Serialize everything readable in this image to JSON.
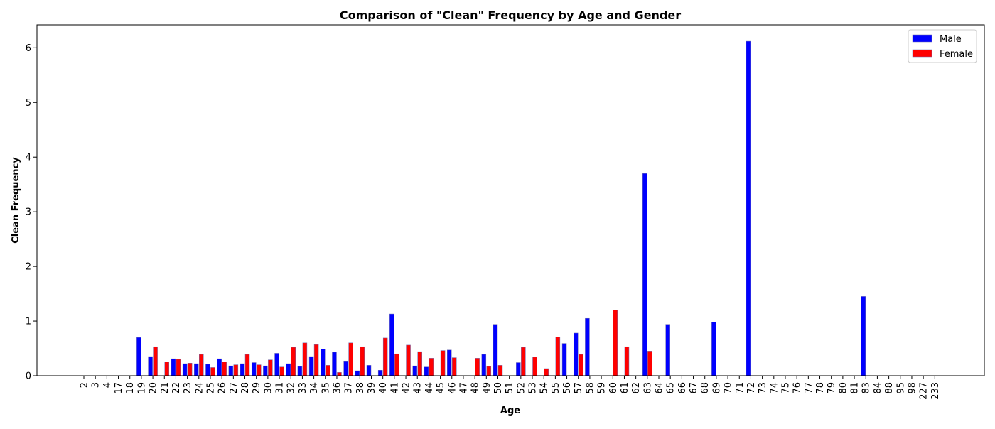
{
  "chart_data": {
    "type": "bar",
    "title": "Comparison of \"Clean\" Frequency by Age and Gender",
    "xlabel": "Age",
    "ylabel": "Clean Frequency",
    "ylim": [
      0,
      6.42
    ],
    "yticks": [
      0,
      1,
      2,
      3,
      4,
      5,
      6
    ],
    "grid": false,
    "legend_position": "top-right",
    "categories": [
      "2",
      "3",
      "4",
      "17",
      "18",
      "19",
      "20",
      "21",
      "22",
      "23",
      "24",
      "25",
      "26",
      "27",
      "28",
      "29",
      "30",
      "31",
      "32",
      "33",
      "34",
      "35",
      "36",
      "37",
      "38",
      "39",
      "40",
      "41",
      "42",
      "43",
      "44",
      "45",
      "46",
      "47",
      "48",
      "49",
      "50",
      "51",
      "52",
      "53",
      "54",
      "55",
      "56",
      "57",
      "58",
      "59",
      "60",
      "61",
      "62",
      "63",
      "64",
      "65",
      "66",
      "67",
      "68",
      "69",
      "70",
      "71",
      "72",
      "73",
      "74",
      "75",
      "76",
      "77",
      "78",
      "79",
      "80",
      "81",
      "83",
      "84",
      "88",
      "95",
      "98",
      "227",
      "233"
    ],
    "series": [
      {
        "name": "Male",
        "color": "#0000ff",
        "values": [
          0,
          0,
          0,
          0,
          0,
          0.7,
          0.35,
          0,
          0.31,
          0.22,
          0.22,
          0.21,
          0.31,
          0.18,
          0.22,
          0.24,
          0.18,
          0.41,
          0.22,
          0.17,
          0.35,
          0.49,
          0.43,
          0.27,
          0.09,
          0.19,
          0.1,
          1.13,
          0,
          0.18,
          0.16,
          0,
          0.47,
          0,
          0,
          0.39,
          0.94,
          0,
          0.24,
          0,
          0,
          0,
          0.59,
          0.78,
          1.05,
          0,
          0,
          0,
          0,
          3.7,
          0,
          0.94,
          0,
          0,
          0,
          0.98,
          0,
          0,
          6.12,
          0,
          0,
          0,
          0,
          0,
          0,
          0,
          0,
          0,
          1.45,
          0,
          0,
          0,
          0,
          0,
          0
        ]
      },
      {
        "name": "Female",
        "color": "#ff0000",
        "values": [
          0,
          0,
          0,
          0,
          0,
          0,
          0.53,
          0.25,
          0.3,
          0.23,
          0.39,
          0.15,
          0.25,
          0.2,
          0.39,
          0.2,
          0.29,
          0.16,
          0.52,
          0.6,
          0.57,
          0.19,
          0.06,
          0.6,
          0.53,
          0,
          0.69,
          0.4,
          0.56,
          0.44,
          0.32,
          0.46,
          0.33,
          0,
          0.32,
          0.17,
          0.19,
          0,
          0.52,
          0.34,
          0.13,
          0.71,
          0,
          0.39,
          0,
          0,
          1.2,
          0.53,
          0,
          0.45,
          0,
          0,
          0,
          0,
          0,
          0,
          0,
          0,
          0,
          0,
          0,
          0,
          0,
          0,
          0,
          0,
          0,
          0,
          0,
          0,
          0,
          0,
          0,
          0,
          0
        ]
      }
    ]
  }
}
